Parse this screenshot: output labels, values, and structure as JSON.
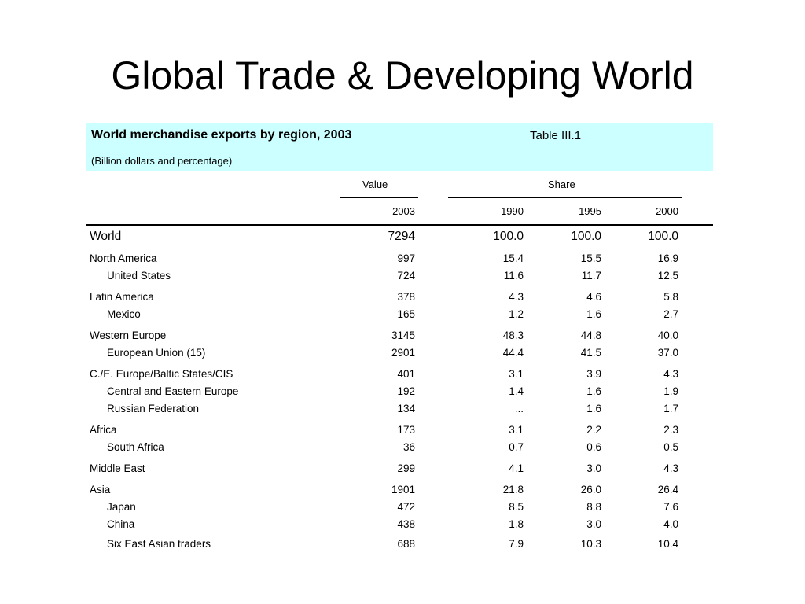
{
  "slide": {
    "title": "Global Trade & Developing World"
  },
  "table": {
    "title": "World merchandise exports by region, 2003",
    "number": "Table III.1",
    "subtitle": "(Billion dollars and percentage)",
    "header": {
      "group_value": "Value",
      "group_share": "Share",
      "years": [
        "2003",
        "1990",
        "1995",
        "2000"
      ]
    },
    "rows": [
      {
        "label": "World",
        "value": "7294",
        "s1990": "100.0",
        "s1995": "100.0",
        "s2000": "100.0"
      },
      {
        "label": "North America",
        "value": "997",
        "s1990": "15.4",
        "s1995": "15.5",
        "s2000": "16.9"
      },
      {
        "label": "United States",
        "value": "724",
        "s1990": "11.6",
        "s1995": "11.7",
        "s2000": "12.5"
      },
      {
        "label": "Latin America",
        "value": "378",
        "s1990": "4.3",
        "s1995": "4.6",
        "s2000": "5.8"
      },
      {
        "label": "Mexico",
        "value": "165",
        "s1990": "1.2",
        "s1995": "1.6",
        "s2000": "2.7"
      },
      {
        "label": "Western Europe",
        "value": "3145",
        "s1990": "48.3",
        "s1995": "44.8",
        "s2000": "40.0"
      },
      {
        "label": "European Union (15)",
        "value": "2901",
        "s1990": "44.4",
        "s1995": "41.5",
        "s2000": "37.0"
      },
      {
        "label": "C./E. Europe/Baltic States/CIS",
        "value": "401",
        "s1990": "3.1",
        "s1995": "3.9",
        "s2000": "4.3"
      },
      {
        "label": "Central and Eastern Europe",
        "value": "192",
        "s1990": "1.4",
        "s1995": "1.6",
        "s2000": "1.9"
      },
      {
        "label": "Russian Federation",
        "value": "134",
        "s1990": "...",
        "s1995": "1.6",
        "s2000": "1.7"
      },
      {
        "label": "Africa",
        "value": "173",
        "s1990": "3.1",
        "s1995": "2.2",
        "s2000": "2.3"
      },
      {
        "label": "South Africa",
        "value": "36",
        "s1990": "0.7",
        "s1995": "0.6",
        "s2000": "0.5"
      },
      {
        "label": "Middle East",
        "value": "299",
        "s1990": "4.1",
        "s1995": "3.0",
        "s2000": "4.3"
      },
      {
        "label": "Asia",
        "value": "1901",
        "s1990": "21.8",
        "s1995": "26.0",
        "s2000": "26.4"
      },
      {
        "label": "Japan",
        "value": "472",
        "s1990": "8.5",
        "s1995": "8.8",
        "s2000": "7.6"
      },
      {
        "label": "China",
        "value": "438",
        "s1990": "1.8",
        "s1995": "3.0",
        "s2000": "4.0"
      },
      {
        "label": "Six East Asian traders",
        "value": "688",
        "s1990": "7.9",
        "s1995": "10.3",
        "s2000": "10.4"
      }
    ]
  }
}
